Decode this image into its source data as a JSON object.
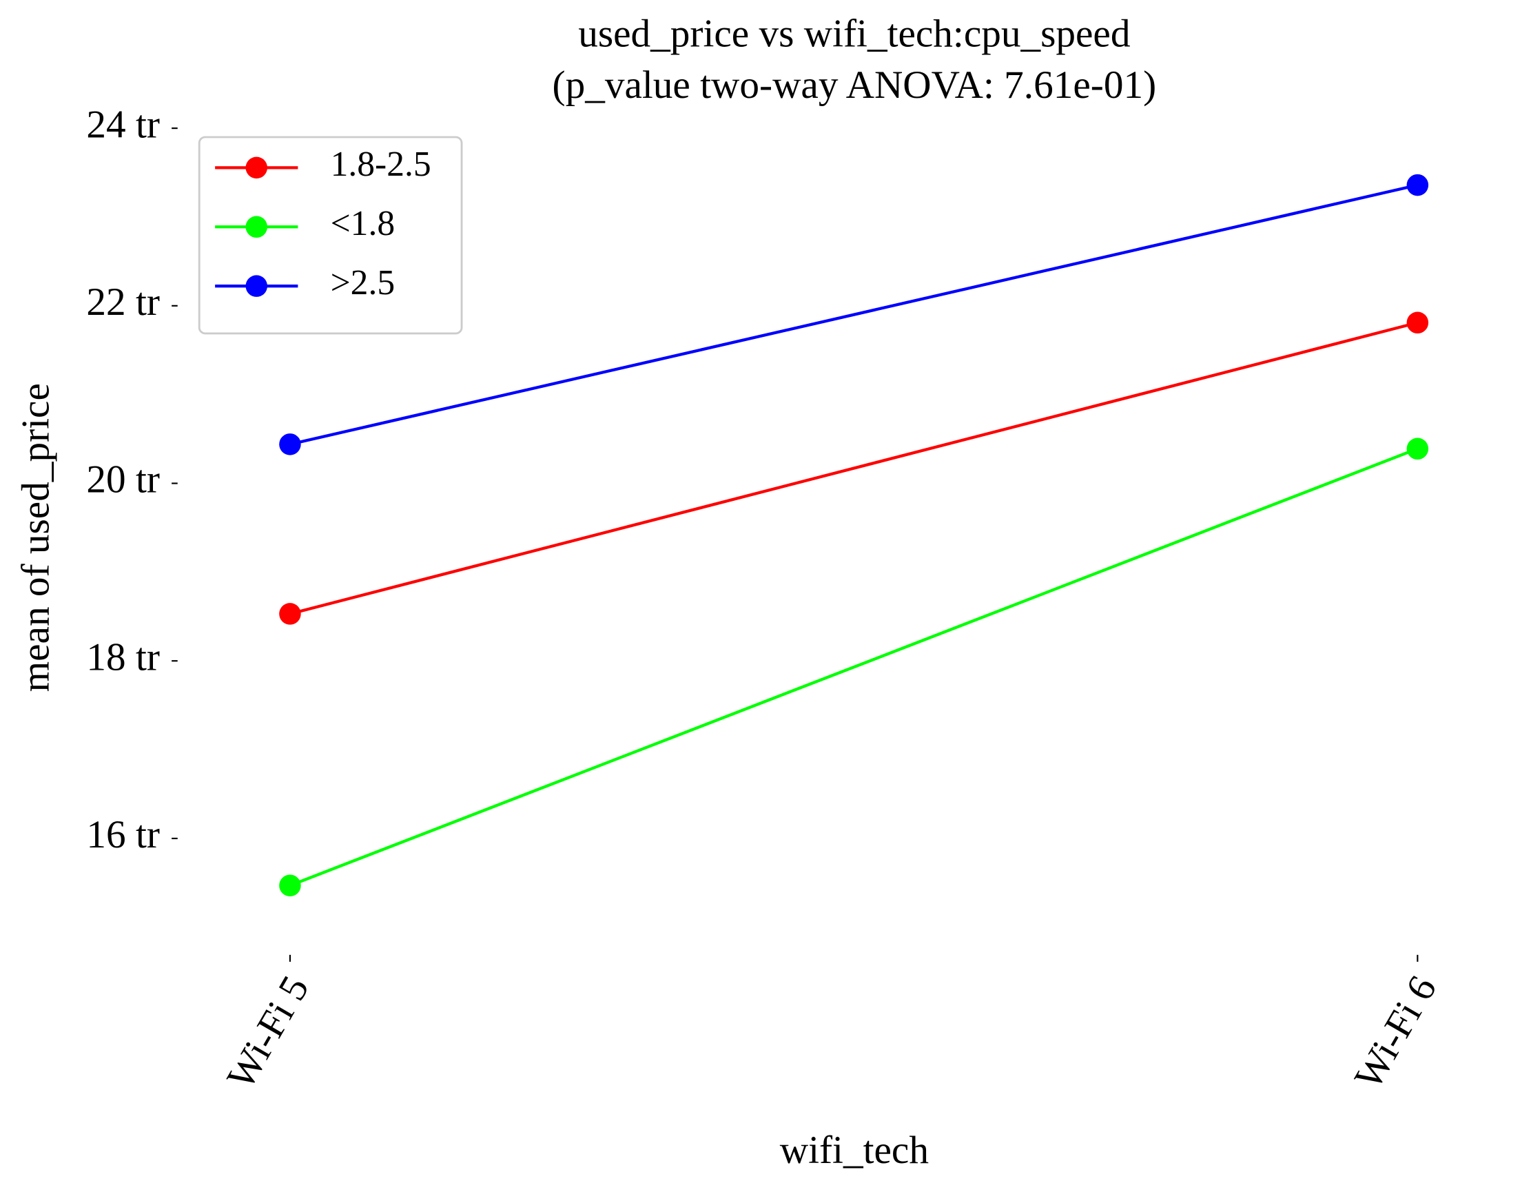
{
  "chart_data": {
    "type": "line",
    "title": "used_price vs wifi_tech:cpu_speed",
    "subtitle": "(p_value two-way ANOVA: 7.61e-01)",
    "x_label": "wifi_tech",
    "y_label": "mean of used_price",
    "categories": [
      "Wi-Fi 5",
      "Wi-Fi 6"
    ],
    "series": [
      {
        "name": "1.8-2.5",
        "color": "#ff0000",
        "values": [
          18.53,
          21.81
        ]
      },
      {
        "name": "<1.8",
        "color": "#00ff00",
        "values": [
          15.47,
          20.39
        ]
      },
      {
        "name": ">2.5",
        "color": "#0000ff",
        "values": [
          20.44,
          23.36
        ]
      }
    ],
    "ylim": [
      14.67,
      24.15
    ],
    "yticks": [
      {
        "value": 16,
        "label": "16 tr"
      },
      {
        "value": 18,
        "label": "18 tr"
      },
      {
        "value": 20,
        "label": "20 tr"
      },
      {
        "value": 22,
        "label": "22 tr"
      },
      {
        "value": 24,
        "label": "24 tr"
      }
    ],
    "legend": "upper left",
    "grid": false
  }
}
